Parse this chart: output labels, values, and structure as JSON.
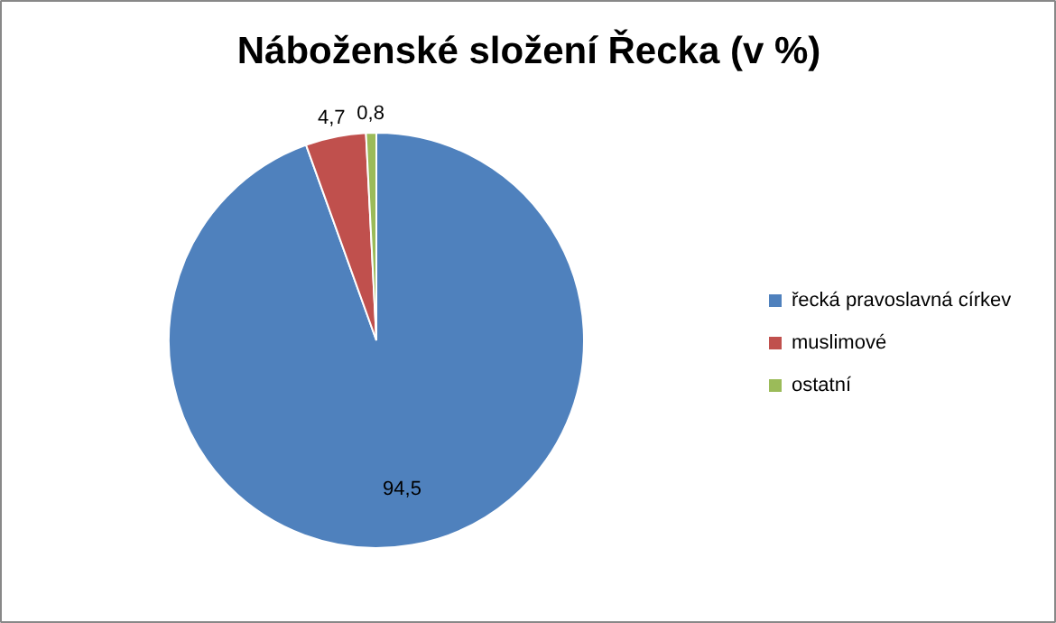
{
  "chart_data": {
    "type": "pie",
    "title": "Náboženské složení Řecka (v %)",
    "categories": [
      "řecká pravoslavná církev",
      "muslimové",
      "ostatní"
    ],
    "values": [
      94.5,
      4.7,
      0.8
    ],
    "colors": [
      "#4f81bd",
      "#c0504d",
      "#9bbb59"
    ],
    "value_labels": [
      "94,5",
      "4,7",
      "0,8"
    ],
    "legend": "right"
  }
}
